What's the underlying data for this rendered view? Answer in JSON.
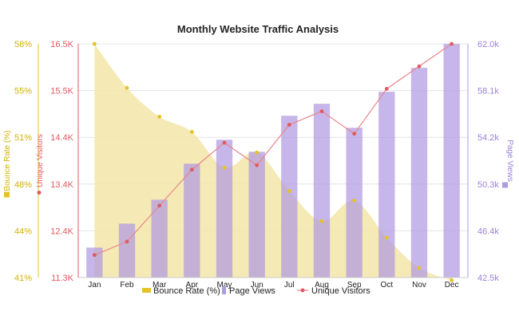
{
  "chart_data": {
    "type": "bar",
    "title": "Monthly Website Traffic Analysis",
    "categories": [
      "Jan",
      "Feb",
      "Mar",
      "Apr",
      "May",
      "Jun",
      "Jul",
      "Aug",
      "Sep",
      "Oct",
      "Nov",
      "Dec"
    ],
    "series": [
      {
        "name": "Bounce Rate (%)",
        "type": "area",
        "axis": "left-outer",
        "color": "#e6c229",
        "values": [
          58.0,
          54.8,
          52.7,
          51.6,
          49.0,
          50.1,
          47.3,
          45.1,
          46.6,
          43.9,
          41.7,
          40.8
        ]
      },
      {
        "name": "Unique Visitors",
        "type": "line",
        "axis": "left-inner",
        "color": "#e05a62",
        "values": [
          11800,
          12100,
          12900,
          13700,
          14300,
          13800,
          14700,
          15000,
          14500,
          15500,
          16000,
          16500
        ]
      },
      {
        "name": "Page Views",
        "type": "bar",
        "axis": "right",
        "color": "#b09ae0",
        "values": [
          45000,
          47000,
          49000,
          52000,
          54000,
          53000,
          56000,
          57000,
          55000,
          58000,
          60000,
          62000
        ]
      }
    ],
    "axes": {
      "left_outer": {
        "label": "Bounce Rate (%)",
        "range": [
          41,
          58
        ],
        "ticks": [
          "41%",
          "44%",
          "48%",
          "51%",
          "55%",
          "58%"
        ],
        "color": "#d4b106"
      },
      "left_inner": {
        "label": "Unique Visitors",
        "range": [
          11300,
          16500
        ],
        "ticks": [
          "11.3K",
          "12.4K",
          "13.4K",
          "14.4K",
          "15.5K",
          "16.5K"
        ],
        "color": "#e05a62"
      },
      "right": {
        "label": "Page Views",
        "range": [
          42500,
          62000
        ],
        "ticks": [
          "42.5k",
          "46.4k",
          "50.3k",
          "54.2k",
          "58.1k",
          "62.0k"
        ],
        "color": "#9b82d9"
      }
    },
    "grid": true,
    "legend_position": "bottom",
    "legend": [
      {
        "label": "Bounce Rate (%)",
        "marker": "rect",
        "color": "#e6c229"
      },
      {
        "label": "Page Views",
        "marker": "rect",
        "color": "#b09ae0"
      },
      {
        "label": "Unique Visitors",
        "marker": "line-dot",
        "color": "#e05a62"
      }
    ]
  }
}
